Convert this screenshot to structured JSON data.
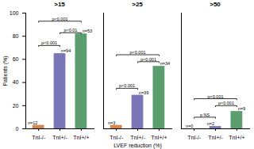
{
  "chart_data": [
    {
      "type": "bar",
      "title": ">15",
      "categories": [
        "TnI-/-",
        "TnI+/-",
        "TnI+/+"
      ],
      "values": [
        3,
        65,
        82
      ],
      "n_labels": [
        "n=12",
        "n=94",
        "n=53"
      ],
      "colors": [
        "#d4854a",
        "#7b76b8",
        "#5a9e6f"
      ],
      "ylabel": "Patients (%)",
      "ylim": [
        0,
        100
      ],
      "yticks": [
        0,
        20,
        40,
        60,
        80,
        100
      ],
      "grid": false,
      "annotations": [
        {
          "text": "p<0.001",
          "from": "TnI-/-",
          "to": "TnI+/-",
          "y": 72
        },
        {
          "text": "p<0.001",
          "from": "TnI-/-",
          "to": "TnI+/+",
          "y": 93
        },
        {
          "text": "p<0.01",
          "from": "TnI+/-",
          "to": "TnI+/+",
          "y": 83
        }
      ]
    },
    {
      "type": "bar",
      "title": ">25",
      "categories": [
        "TnI-/-",
        "TnI+/-",
        "TnI+/+"
      ],
      "values": [
        3,
        29,
        54
      ],
      "n_labels": [
        "n=3",
        "n=39",
        "n=34"
      ],
      "colors": [
        "#d4854a",
        "#7b76b8",
        "#5a9e6f"
      ],
      "xlabel": "LVEF reduction (%)",
      "ylim": [
        0,
        100
      ],
      "grid": false,
      "tick_labels": "x",
      "annotations": [
        {
          "text": "p<0.001",
          "from": "TnI-/-",
          "to": "TnI+/-",
          "y": 35
        },
        {
          "text": "p<0.001",
          "from": "TnI-/-",
          "to": "TnI+/+",
          "y": 64
        },
        {
          "text": "p<0.001",
          "from": "TnI+/-",
          "to": "TnI+/+",
          "y": 58
        }
      ]
    },
    {
      "type": "bar",
      "title": ">50",
      "categories": [
        "TnI-/-",
        "TnI+/-",
        "TnI+/+"
      ],
      "values": [
        0,
        2,
        15
      ],
      "n_labels": [
        "n=0",
        "n=2",
        "n=9"
      ],
      "colors": [
        "#d4854a",
        "#7b76b8",
        "#5a9e6f"
      ],
      "ylim": [
        0,
        100
      ],
      "grid": false,
      "tick_labels": "x",
      "annotations": [
        {
          "text": "p NS",
          "from": "TnI-/-",
          "to": "TnI+/-",
          "y": 10
        },
        {
          "text": "p<0.001",
          "from": "TnI-/-",
          "to": "TnI+/+",
          "y": 26
        },
        {
          "text": "p<0.001",
          "from": "TnI+/-",
          "to": "TnI+/+",
          "y": 20
        }
      ]
    }
  ]
}
